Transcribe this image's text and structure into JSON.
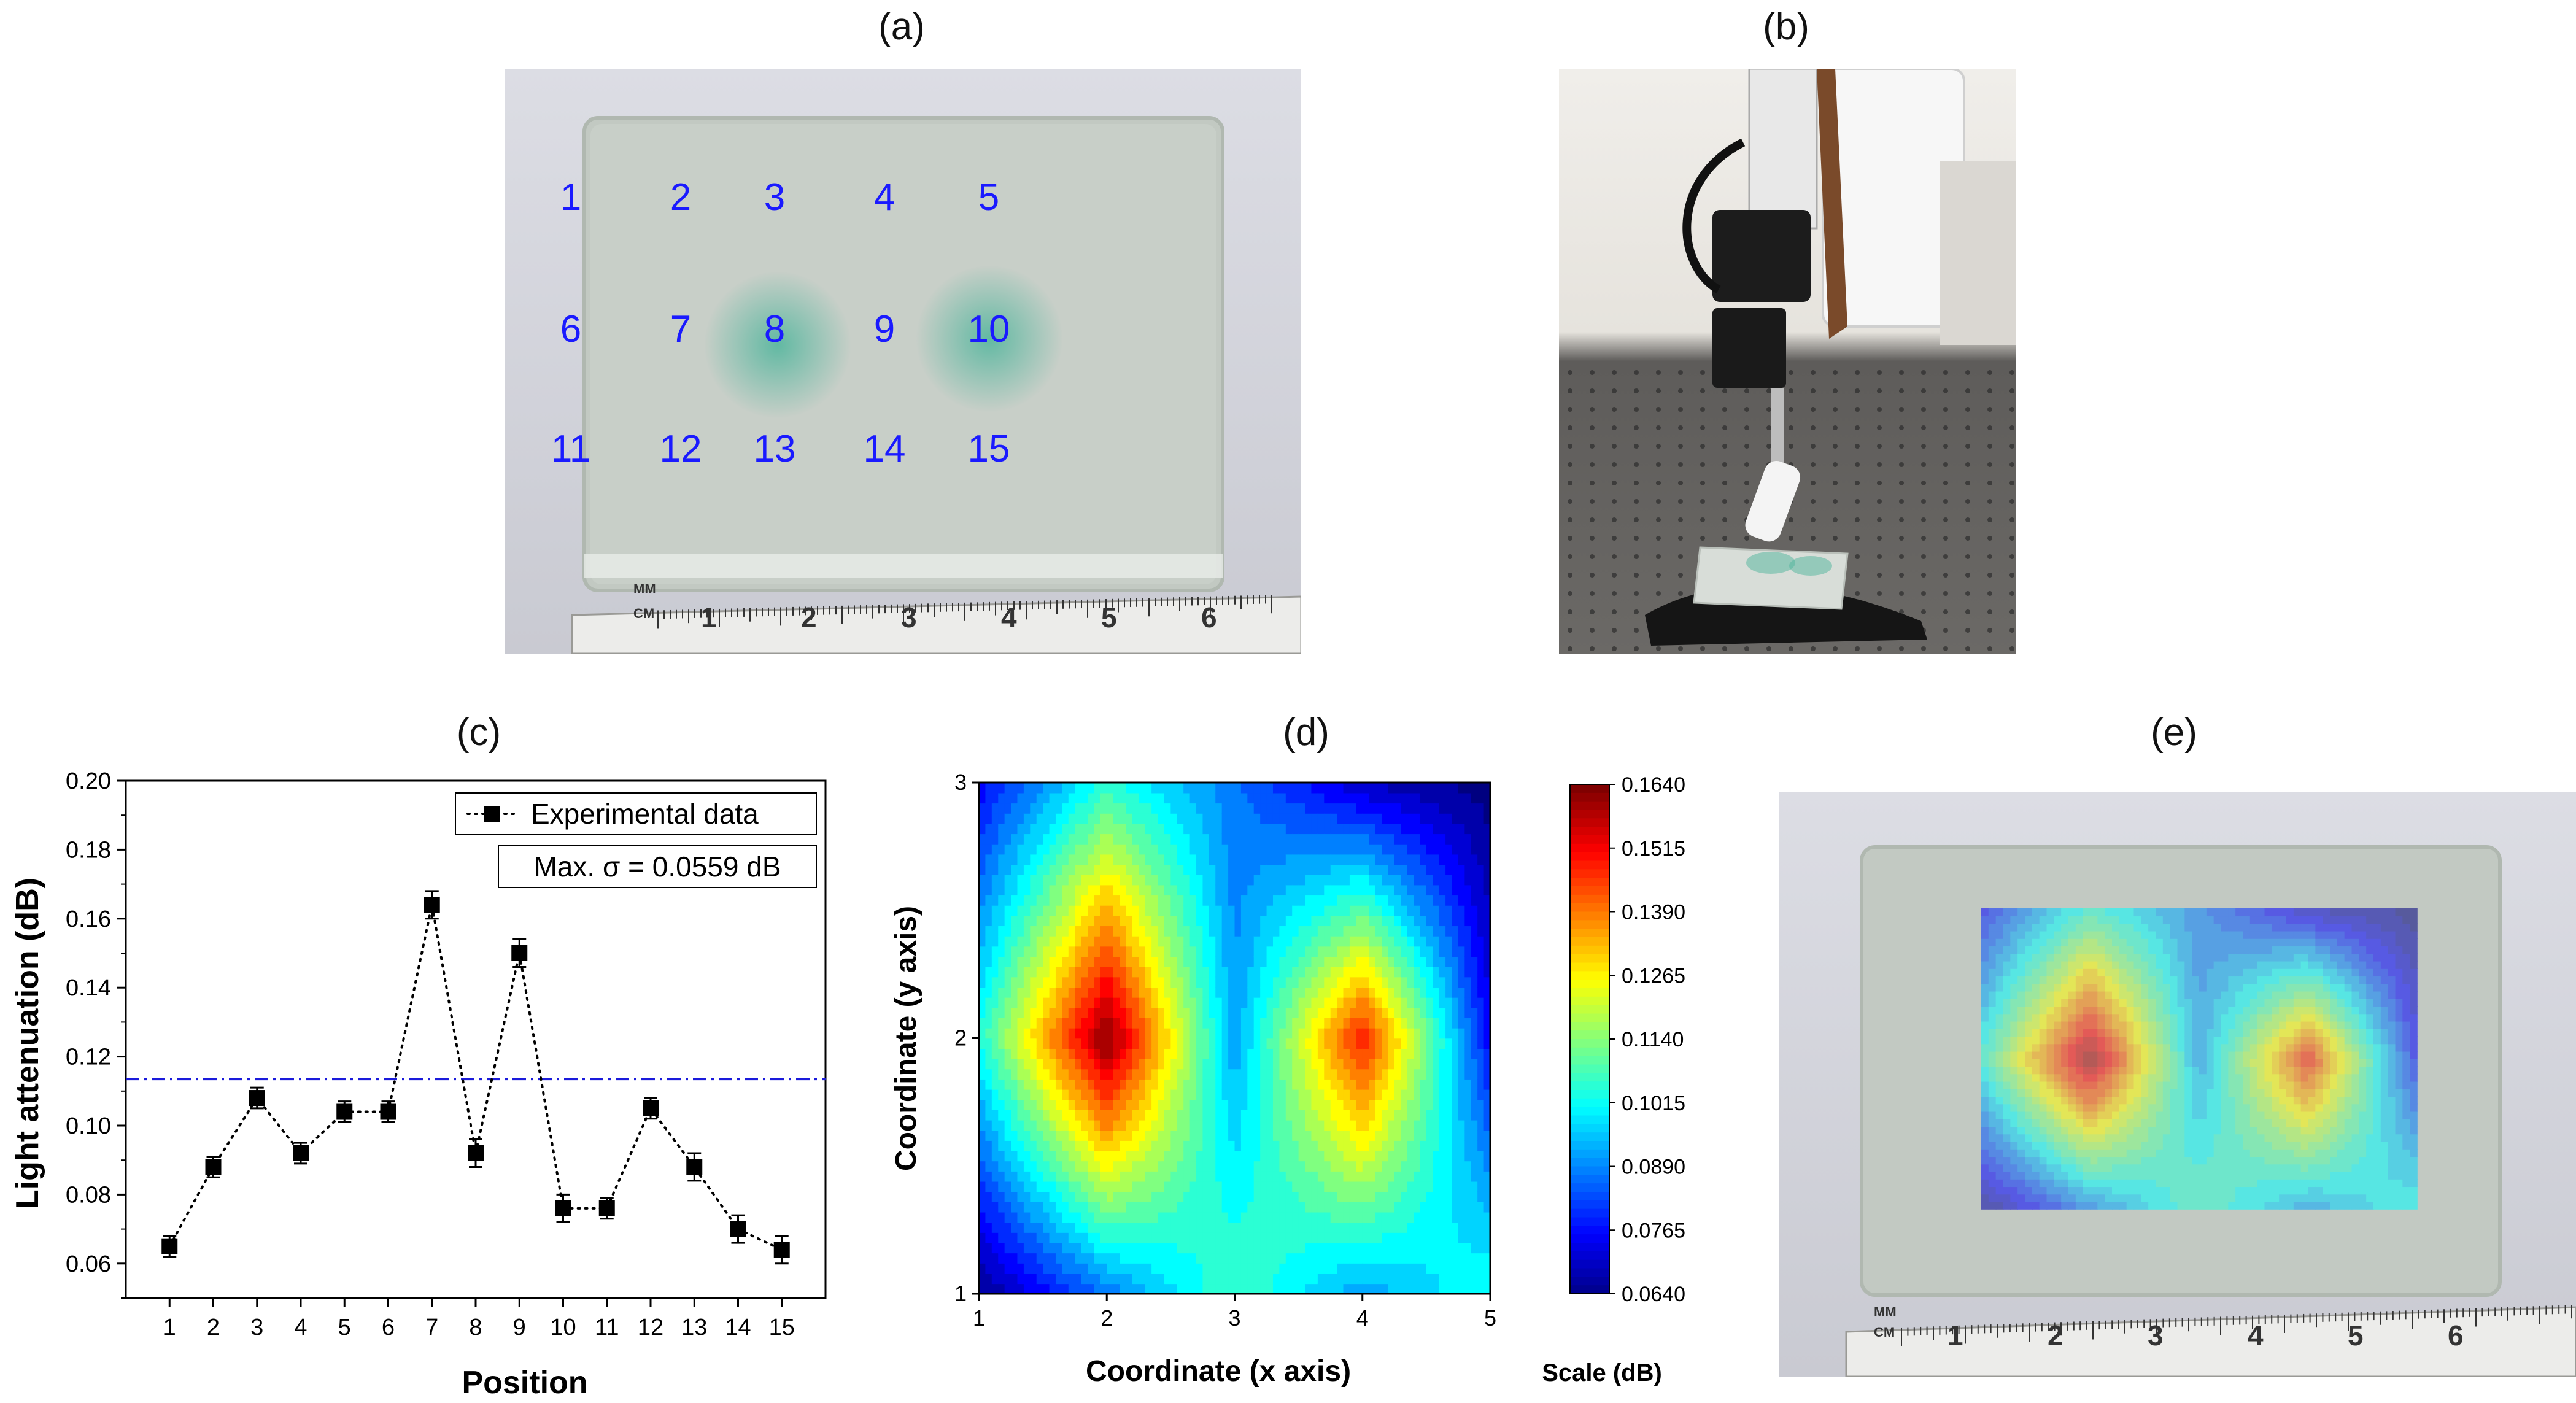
{
  "panels": {
    "a": "(a)",
    "b": "(b)",
    "c": "(c)",
    "d": "(d)",
    "e": "(e)"
  },
  "photo_a": {
    "grid_numbers": [
      "1",
      "2",
      "3",
      "4",
      "5",
      "6",
      "7",
      "8",
      "9",
      "10",
      "11",
      "12",
      "13",
      "14",
      "15"
    ],
    "ruler_units": [
      "MM",
      "CM"
    ],
    "ruler_numbers": [
      "1",
      "2",
      "3",
      "4",
      "5",
      "6"
    ],
    "number_color": "#1a1aff"
  },
  "photo_e": {
    "ruler_units": [
      "MM",
      "CM"
    ],
    "ruler_numbers": [
      "1",
      "2",
      "3",
      "4",
      "5",
      "6"
    ]
  },
  "chart_data": [
    {
      "type": "scatter",
      "panel": "c",
      "xlabel": "Position",
      "ylabel": "Light attenuation (dB)",
      "x": [
        1,
        2,
        3,
        4,
        5,
        6,
        7,
        8,
        9,
        10,
        11,
        12,
        13,
        14,
        15
      ],
      "series": [
        {
          "name": "Experimental data",
          "values": [
            0.065,
            0.088,
            0.108,
            0.092,
            0.104,
            0.104,
            0.164,
            0.092,
            0.15,
            0.076,
            0.076,
            0.105,
            0.088,
            0.07,
            0.064
          ],
          "errors": [
            0.003,
            0.003,
            0.003,
            0.003,
            0.003,
            0.003,
            0.004,
            0.004,
            0.004,
            0.004,
            0.003,
            0.003,
            0.004,
            0.004,
            0.004
          ],
          "marker": "square",
          "line": "dotted",
          "color": "#000000"
        }
      ],
      "reference_line": {
        "y": 0.1135,
        "style": "dash-dot",
        "color": "#1a1adb"
      },
      "annotation": "Max. σ = 0.0559 dB",
      "xlim": [
        0,
        16
      ],
      "ylim": [
        0.05,
        0.2
      ],
      "yticks": [
        "0.06",
        "0.08",
        "0.10",
        "0.12",
        "0.14",
        "0.16",
        "0.18",
        "0.20"
      ],
      "xticks": [
        "1",
        "2",
        "3",
        "4",
        "5",
        "6",
        "7",
        "8",
        "9",
        "10",
        "11",
        "12",
        "13",
        "14",
        "15"
      ],
      "legend_position": "top-right"
    },
    {
      "type": "heatmap",
      "panel": "d",
      "xlabel": "Coordinate (x axis)",
      "ylabel": "Coordinate (y axis)",
      "x": [
        1,
        2,
        3,
        4,
        5
      ],
      "y": [
        1,
        2,
        3
      ],
      "z": [
        [
          0.065,
          0.088,
          0.108,
          0.092,
          0.104
        ],
        [
          0.104,
          0.164,
          0.092,
          0.15,
          0.076
        ],
        [
          0.076,
          0.105,
          0.088,
          0.07,
          0.064
        ]
      ],
      "xlim": [
        1,
        5
      ],
      "ylim": [
        1,
        3
      ],
      "xticks": [
        "1",
        "2",
        "3",
        "4",
        "5"
      ],
      "yticks": [
        "1",
        "2",
        "3"
      ],
      "colorbar": {
        "label": "Scale (dB)",
        "min": 0.064,
        "max": 0.164,
        "ticks": [
          "0.1640",
          "0.1515",
          "0.1390",
          "0.1265",
          "0.1140",
          "0.1015",
          "0.0890",
          "0.0765",
          "0.0640"
        ]
      }
    }
  ]
}
